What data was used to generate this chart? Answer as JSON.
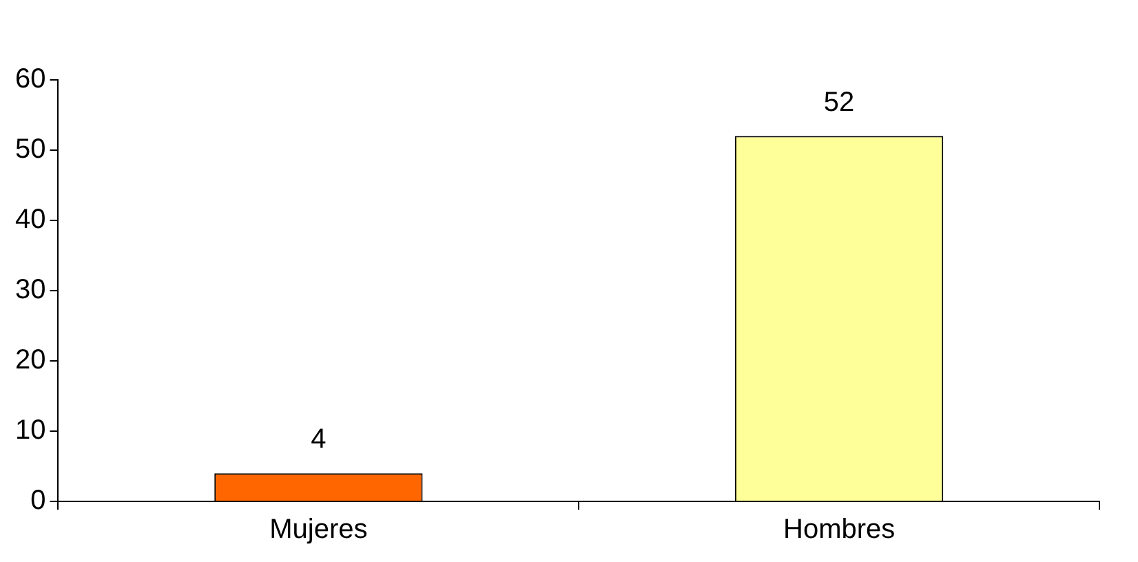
{
  "chart_data": {
    "type": "bar",
    "categories": [
      "Mujeres",
      "Hombres"
    ],
    "values": [
      4,
      52
    ],
    "colors": [
      "#ff6600",
      "#ffff99"
    ],
    "ylim": [
      0,
      60
    ],
    "yticks": [
      0,
      10,
      20,
      30,
      40,
      50,
      60
    ],
    "data_labels": true,
    "grid": false,
    "legend": false
  }
}
